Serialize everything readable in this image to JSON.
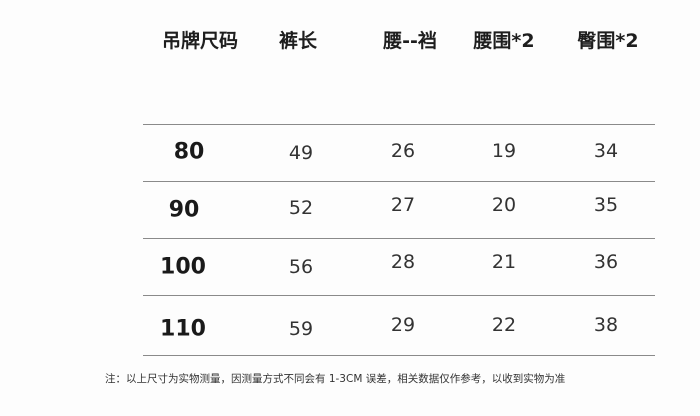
{
  "headers": [
    "吊牌尺码",
    "裤长",
    "腰--裆",
    "腰围*2",
    "臀围*2"
  ],
  "rows": [
    [
      "80",
      "49",
      "26",
      "19",
      "34"
    ],
    [
      "90",
      "52",
      "27",
      "20",
      "35"
    ],
    [
      "100",
      "56",
      "28",
      "21",
      "36"
    ],
    [
      "110",
      "59",
      "29",
      "22",
      "38"
    ]
  ],
  "note": "注：以上尺寸为实物测量，因测量方式不同会有 1-3CM 误差，相关数据仅作参考，以收到实物为准"
}
